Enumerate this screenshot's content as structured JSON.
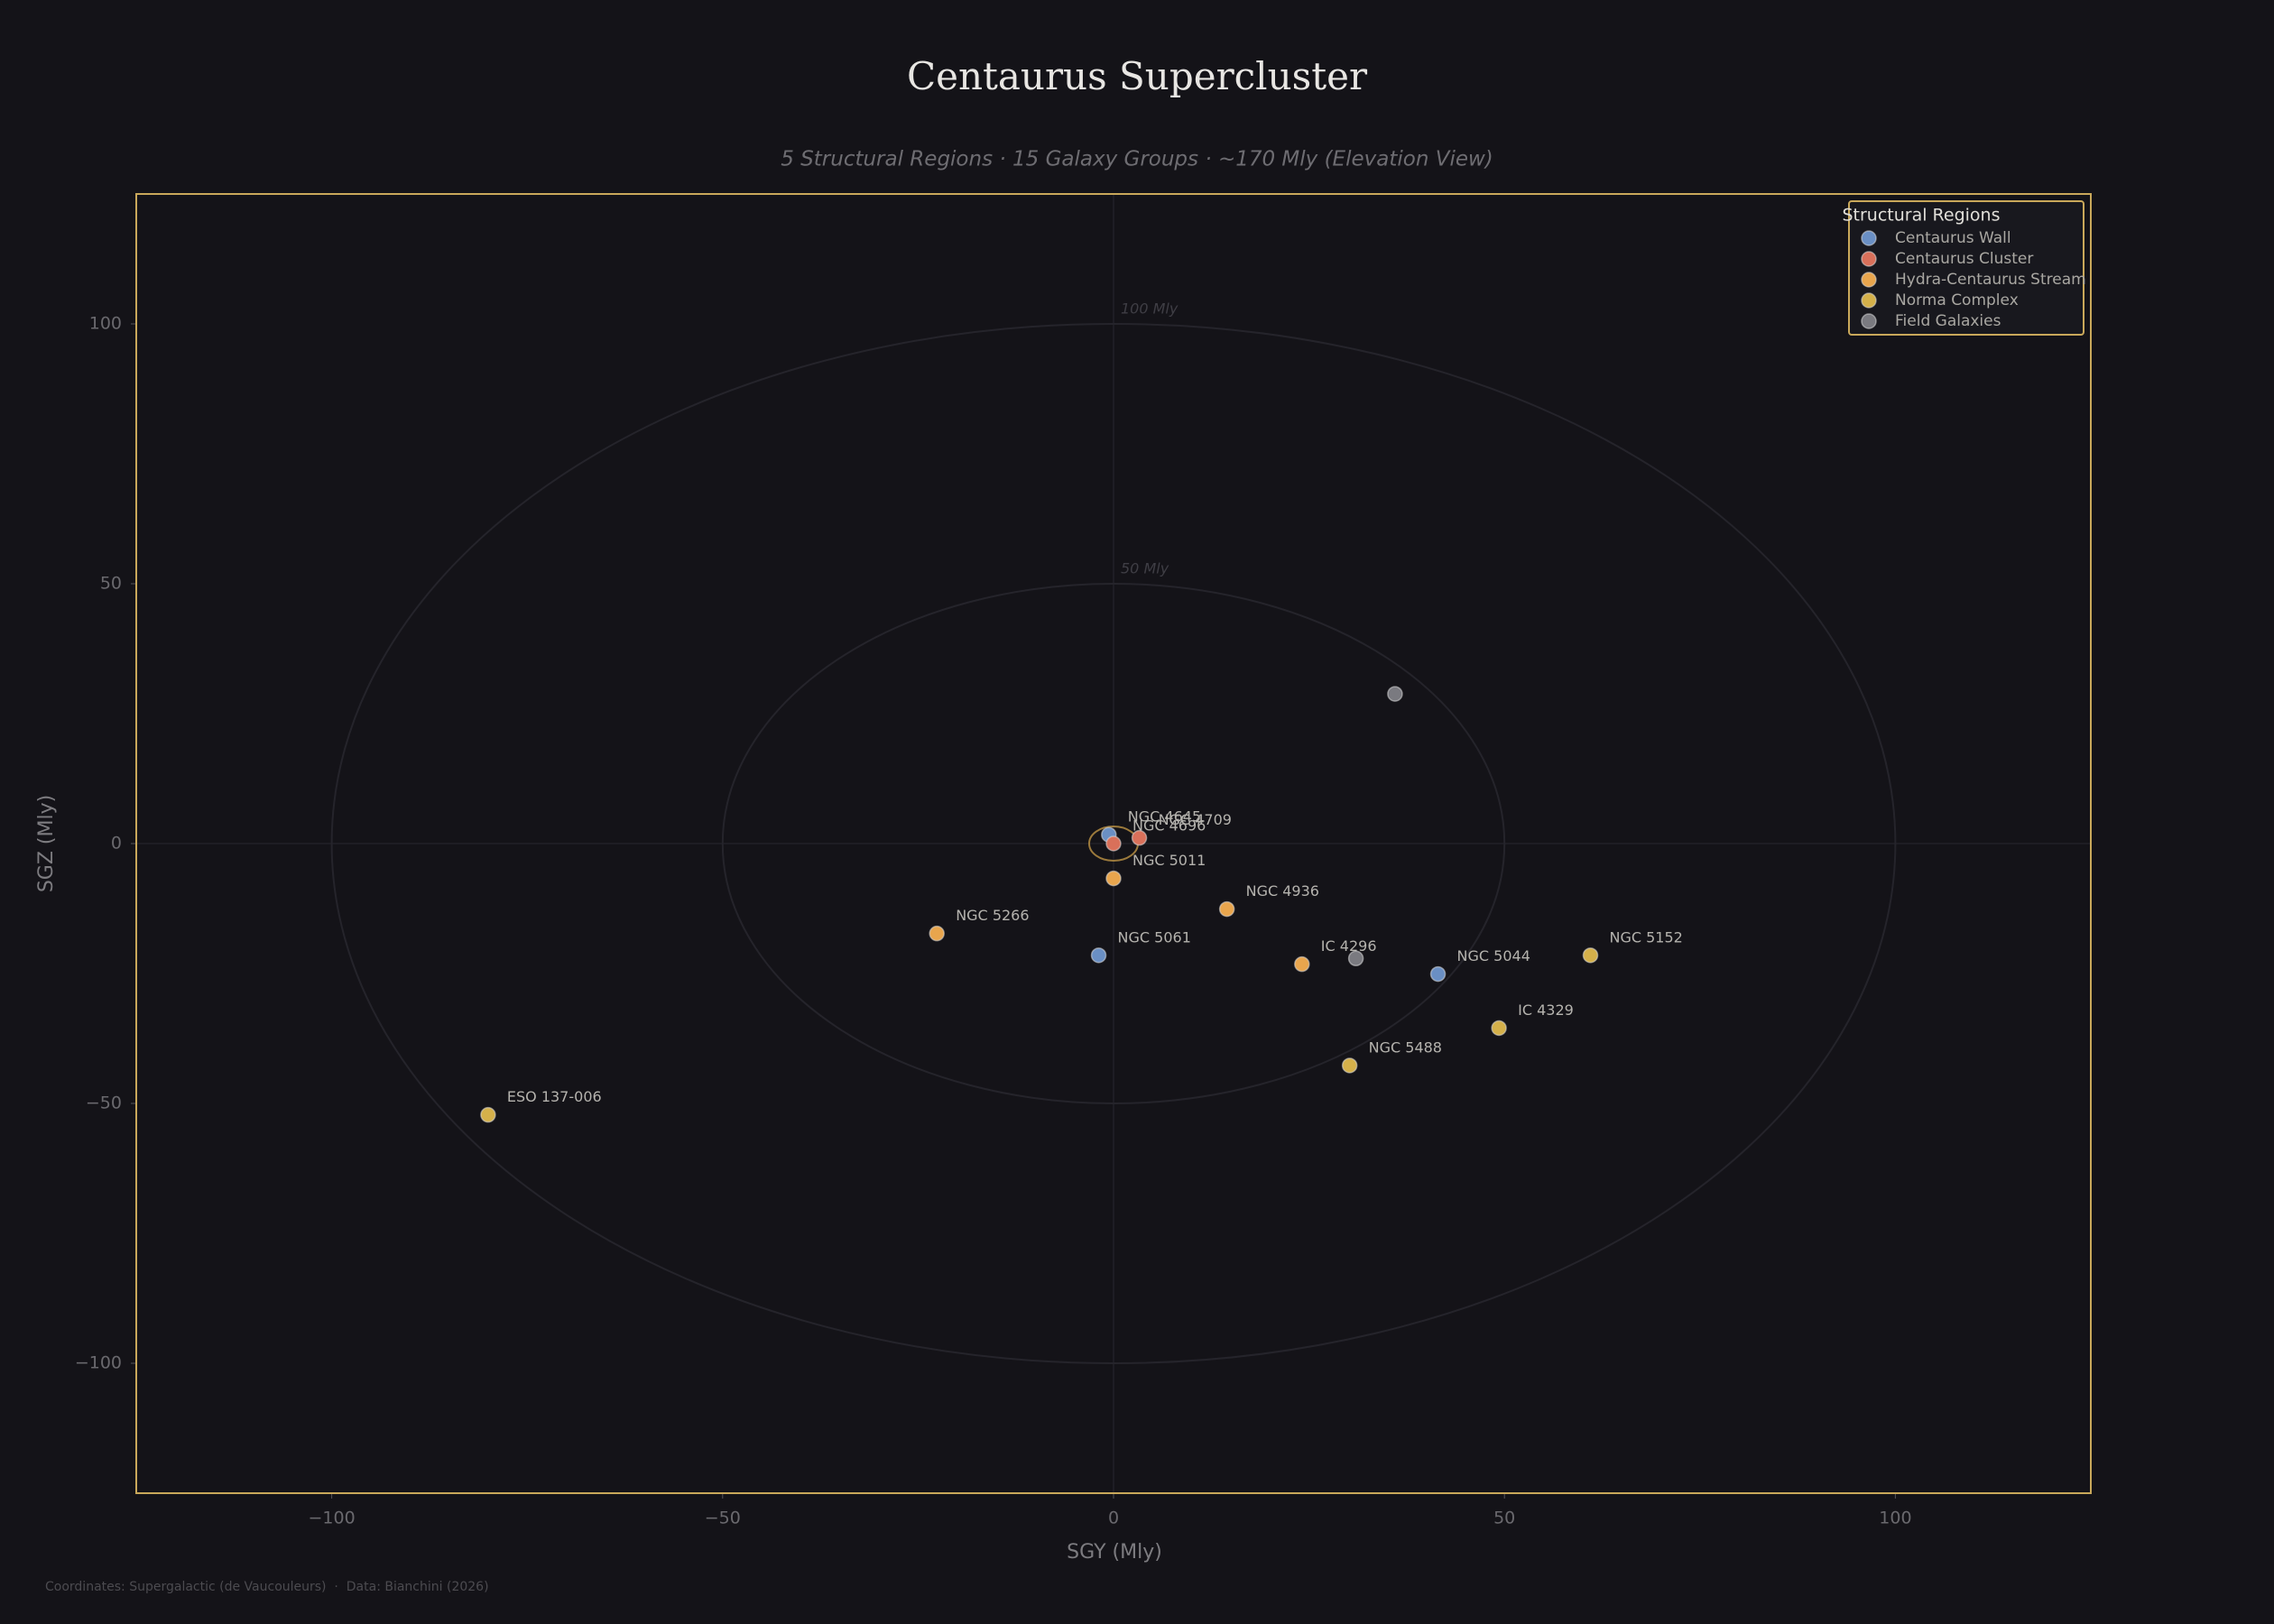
{
  "chart_data": {
    "type": "scatter",
    "title": "Centaurus Supercluster",
    "subtitle": "5 Structural Regions · 15 Galaxy Groups · ~170 Mly  (Elevation View)",
    "x_label": "SGY (Mly)",
    "y_label": "SGZ (Mly)",
    "footer": "Coordinates: Supergalactic (de Vaucouleurs)  ·  Data: Bianchini (2026)",
    "xlim": [
      -125,
      125
    ],
    "ylim": [
      -125,
      125
    ],
    "xticks": [
      {
        "value": -100,
        "label": "−100"
      },
      {
        "value": -50,
        "label": "−50"
      },
      0,
      50,
      100
    ],
    "yticks": [
      {
        "value": -100,
        "label": "−100"
      },
      {
        "value": -50,
        "label": "−50"
      },
      0,
      50,
      100
    ],
    "grid": false,
    "legend_title": "Structural Regions",
    "legend_position": "upper right",
    "rings": [
      {
        "radius": 50,
        "label": "50 Mly"
      },
      {
        "radius": 100,
        "label": "100 Mly"
      }
    ],
    "series": [
      {
        "name": "Centaurus Wall",
        "color": "#6a8fc4",
        "x": [
          -0.6,
          -1.9,
          41.5
        ],
        "y": [
          1.7,
          -21.5,
          -25.1
        ],
        "labels": [
          "NGC 4645",
          "NGC 5061",
          "NGC 5044"
        ]
      },
      {
        "name": "Centaurus Cluster",
        "color": "#d9705a",
        "x": [
          0,
          3.3
        ],
        "y": [
          0,
          1.1
        ],
        "labels": [
          "NGC 4696",
          "NGC 4709"
        ]
      },
      {
        "name": "Hydra-Centaurus Stream",
        "color": "#e8a54d",
        "x": [
          0,
          14.5,
          -22.6,
          24.1
        ],
        "y": [
          -6.7,
          -12.6,
          -17.3,
          -23.2
        ],
        "labels": [
          "NGC 5011",
          "NGC 4936",
          "NGC 5266",
          "IC 4296"
        ]
      },
      {
        "name": "Norma Complex",
        "color": "#d4b04a",
        "x": [
          61,
          49.3,
          30.2,
          -80
        ],
        "y": [
          -21.5,
          -35.5,
          -42.7,
          -52.2
        ],
        "labels": [
          "NGC 5152",
          "IC 4329",
          "NGC 5488",
          "ESO 137-006"
        ]
      },
      {
        "name": "Field Galaxies",
        "color": "#7a7a80",
        "x": [
          31,
          36
        ],
        "y": [
          -22.1,
          28.8
        ],
        "labels": [
          null,
          null
        ]
      }
    ]
  }
}
